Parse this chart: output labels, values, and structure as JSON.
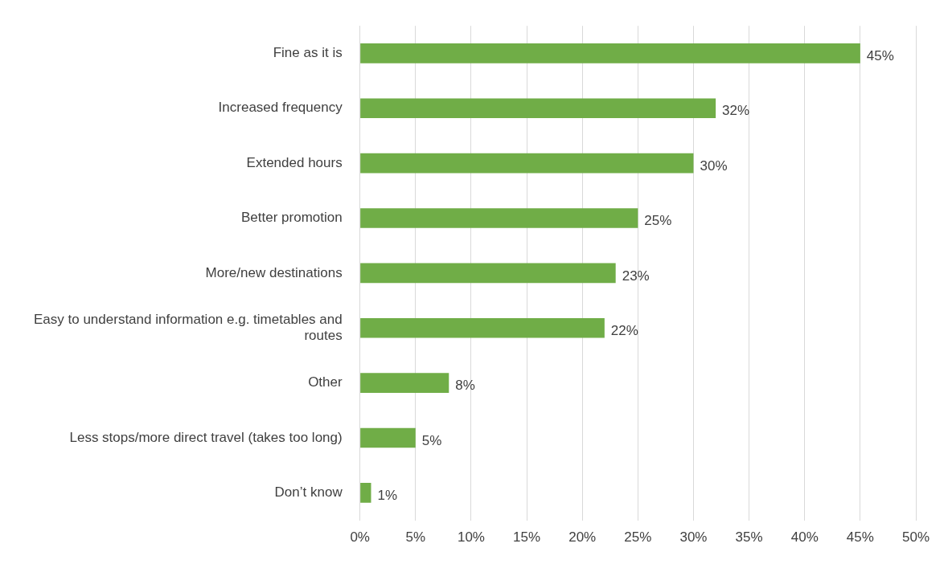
{
  "chart_data": {
    "type": "bar",
    "orientation": "horizontal",
    "categories": [
      "Fine as it is",
      "Increased frequency",
      "Extended hours",
      "Better promotion",
      "More/new destinations",
      "Easy to understand information e.g. timetables and routes",
      "Other",
      "Less stops/more direct travel (takes too long)",
      "Don’t know"
    ],
    "values": [
      45,
      32,
      30,
      25,
      23,
      22,
      8,
      5,
      1
    ],
    "value_labels": [
      "45%",
      "32%",
      "30%",
      "25%",
      "23%",
      "22%",
      "8%",
      "5%",
      "1%"
    ],
    "color": "#70ad47",
    "xlim": [
      0,
      50
    ],
    "xticks": [
      {
        "value": 0,
        "label": "0%"
      },
      {
        "value": 5,
        "label": "5%"
      },
      {
        "value": 10,
        "label": "10%"
      },
      {
        "value": 15,
        "label": "15%"
      },
      {
        "value": 20,
        "label": "20%"
      },
      {
        "value": 25,
        "label": "25%"
      },
      {
        "value": 30,
        "label": "30%"
      },
      {
        "value": 35,
        "label": "35%"
      },
      {
        "value": 40,
        "label": "40%"
      },
      {
        "value": 45,
        "label": "45%"
      },
      {
        "value": 50,
        "label": "50%"
      }
    ],
    "grid": "x",
    "legend": false
  }
}
